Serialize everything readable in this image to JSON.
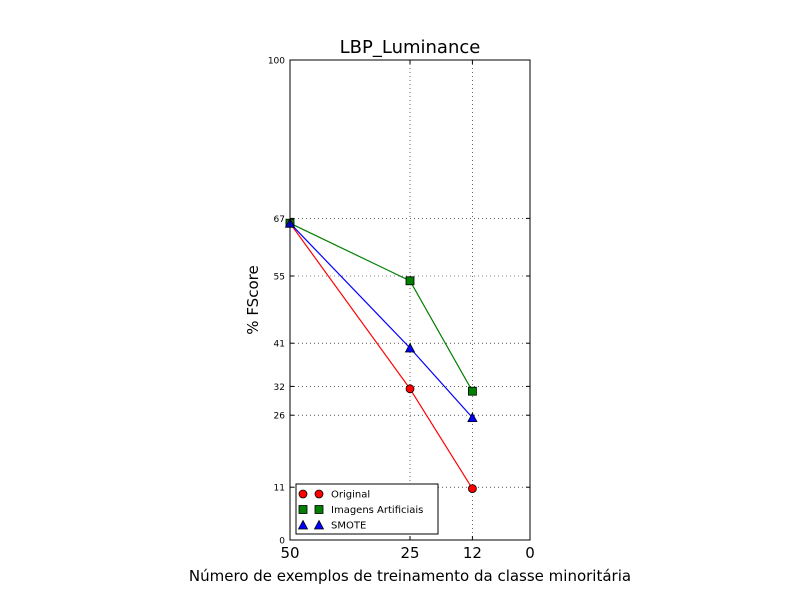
{
  "chart_data": {
    "type": "line",
    "title": "LBP_Luminance",
    "xlabel": "Número de exemplos de treinamento da classe minoritária",
    "ylabel": "% FScore",
    "xlim": [
      50,
      0
    ],
    "ylim": [
      0,
      100
    ],
    "x_inverted": true,
    "grid": true,
    "legend_position": "lower-left",
    "xticks": [
      50,
      25,
      12,
      0
    ],
    "yticks": [
      0,
      11,
      26,
      32,
      41,
      55,
      67,
      100
    ],
    "x": [
      50,
      25,
      12
    ],
    "series": [
      {
        "name": "Original",
        "values": [
          66,
          31.5,
          10.7
        ],
        "color": "#ff0000",
        "marker": "circle"
      },
      {
        "name": "Imagens Artificiais",
        "values": [
          66,
          54,
          31
        ],
        "color": "#007f00",
        "marker": "square"
      },
      {
        "name": "SMOTE",
        "values": [
          66,
          40,
          25.5
        ],
        "color": "#0000ff",
        "marker": "triangle"
      }
    ]
  }
}
